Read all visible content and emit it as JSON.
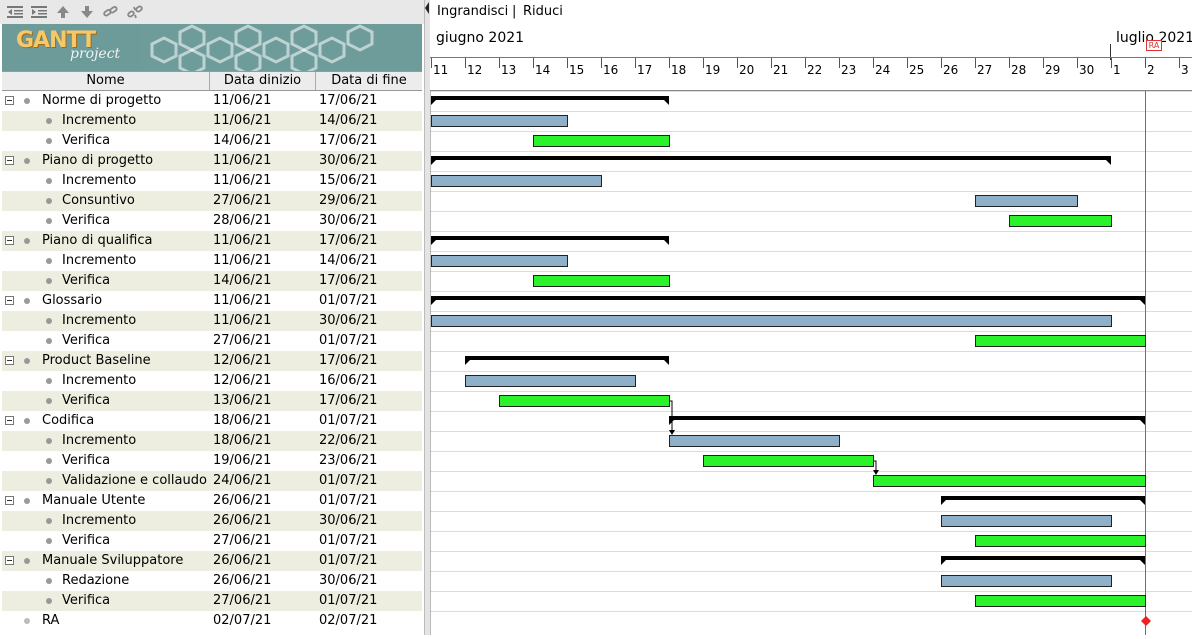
{
  "toolbar": {
    "icons": [
      "outdent-icon",
      "indent-icon",
      "arrow-up-icon",
      "arrow-down-icon",
      "link-icon",
      "unlink-icon"
    ]
  },
  "logo": {
    "main": "GANTT",
    "sub": "project"
  },
  "table": {
    "headers": {
      "name": "Nome",
      "start": "Data dinizio",
      "end": "Data di fine"
    }
  },
  "zoom": {
    "in": "Ingrandisci",
    "sep": "|",
    "out": "Riduci"
  },
  "timeline": {
    "month1": "giugno 2021",
    "month2": "luglio 2021",
    "days": [
      "11",
      "12",
      "13",
      "14",
      "15",
      "16",
      "17",
      "18",
      "19",
      "20",
      "21",
      "22",
      "23",
      "24",
      "25",
      "26",
      "27",
      "28",
      "29",
      "30",
      "1",
      "2",
      "3"
    ],
    "milestone_marker": "RA"
  },
  "colors": {
    "task": "#8eb0c8",
    "verify": "#2cf22c",
    "summary": "#000000",
    "milestone": "#ee2222",
    "row_alt": "#eeeee0",
    "logo_bg": "#6d9c9a"
  },
  "tasks": [
    {
      "name": "Norme di progetto",
      "start": "11/06/21",
      "end": "17/06/21",
      "level": 0,
      "type": "summary",
      "s": 0,
      "e": 7
    },
    {
      "name": "Incremento",
      "start": "11/06/21",
      "end": "14/06/21",
      "level": 1,
      "type": "task",
      "s": 0,
      "e": 4
    },
    {
      "name": "Verifica",
      "start": "14/06/21",
      "end": "17/06/21",
      "level": 1,
      "type": "verify",
      "s": 3,
      "e": 7
    },
    {
      "name": "Piano di progetto",
      "start": "11/06/21",
      "end": "30/06/21",
      "level": 0,
      "type": "summary",
      "s": 0,
      "e": 20
    },
    {
      "name": "Incremento",
      "start": "11/06/21",
      "end": "15/06/21",
      "level": 1,
      "type": "task",
      "s": 0,
      "e": 5
    },
    {
      "name": "Consuntivo",
      "start": "27/06/21",
      "end": "29/06/21",
      "level": 1,
      "type": "task",
      "s": 16,
      "e": 19
    },
    {
      "name": "Verifica",
      "start": "28/06/21",
      "end": "30/06/21",
      "level": 1,
      "type": "verify",
      "s": 17,
      "e": 20
    },
    {
      "name": "Piano di qualifica",
      "start": "11/06/21",
      "end": "17/06/21",
      "level": 0,
      "type": "summary",
      "s": 0,
      "e": 7
    },
    {
      "name": "Incremento",
      "start": "11/06/21",
      "end": "14/06/21",
      "level": 1,
      "type": "task",
      "s": 0,
      "e": 4
    },
    {
      "name": "Verifica",
      "start": "14/06/21",
      "end": "17/06/21",
      "level": 1,
      "type": "verify",
      "s": 3,
      "e": 7
    },
    {
      "name": "Glossario",
      "start": "11/06/21",
      "end": "01/07/21",
      "level": 0,
      "type": "summary",
      "s": 0,
      "e": 21
    },
    {
      "name": "Incremento",
      "start": "11/06/21",
      "end": "30/06/21",
      "level": 1,
      "type": "task",
      "s": 0,
      "e": 20
    },
    {
      "name": "Verifica",
      "start": "27/06/21",
      "end": "01/07/21",
      "level": 1,
      "type": "verify",
      "s": 16,
      "e": 21
    },
    {
      "name": "Product Baseline",
      "start": "12/06/21",
      "end": "17/06/21",
      "level": 0,
      "type": "summary",
      "s": 1,
      "e": 7
    },
    {
      "name": "Incremento",
      "start": "12/06/21",
      "end": "16/06/21",
      "level": 1,
      "type": "task",
      "s": 1,
      "e": 6
    },
    {
      "name": "Verifica",
      "start": "13/06/21",
      "end": "17/06/21",
      "level": 1,
      "type": "verify",
      "s": 2,
      "e": 7
    },
    {
      "name": "Codifica",
      "start": "18/06/21",
      "end": "01/07/21",
      "level": 0,
      "type": "summary",
      "s": 7,
      "e": 21
    },
    {
      "name": "Incremento",
      "start": "18/06/21",
      "end": "22/06/21",
      "level": 1,
      "type": "task",
      "s": 7,
      "e": 12
    },
    {
      "name": "Verifica",
      "start": "19/06/21",
      "end": "23/06/21",
      "level": 1,
      "type": "verify",
      "s": 8,
      "e": 13
    },
    {
      "name": "Validazione e collaudo",
      "start": "24/06/21",
      "end": "01/07/21",
      "level": 1,
      "type": "verify",
      "s": 13,
      "e": 21
    },
    {
      "name": "Manuale Utente",
      "start": "26/06/21",
      "end": "01/07/21",
      "level": 0,
      "type": "summary",
      "s": 15,
      "e": 21
    },
    {
      "name": "Incremento",
      "start": "26/06/21",
      "end": "30/06/21",
      "level": 1,
      "type": "task",
      "s": 15,
      "e": 20
    },
    {
      "name": "Verifica",
      "start": "27/06/21",
      "end": "01/07/21",
      "level": 1,
      "type": "verify",
      "s": 16,
      "e": 21
    },
    {
      "name": "Manuale Sviluppatore",
      "start": "26/06/21",
      "end": "01/07/21",
      "level": 0,
      "type": "summary",
      "s": 15,
      "e": 21
    },
    {
      "name": "Redazione",
      "start": "26/06/21",
      "end": "30/06/21",
      "level": 1,
      "type": "task",
      "s": 15,
      "e": 20
    },
    {
      "name": "Verifica",
      "start": "27/06/21",
      "end": "01/07/21",
      "level": 1,
      "type": "verify",
      "s": 16,
      "e": 21
    },
    {
      "name": "RA",
      "start": "02/07/21",
      "end": "02/07/21",
      "level": -1,
      "type": "milestone",
      "s": 21,
      "e": 21
    }
  ]
}
